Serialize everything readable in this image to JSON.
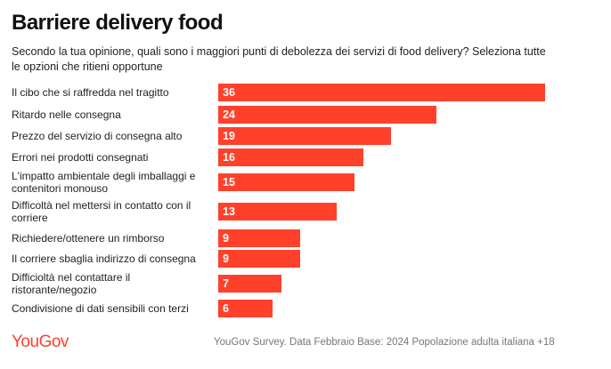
{
  "chart_data": {
    "type": "bar",
    "orientation": "horizontal",
    "title": "Barriere delivery food",
    "subtitle": "Secondo la tua opinione, quali sono i maggiori punti di debolezza dei servizi di food delivery? Seleziona tutte le opzioni che ritieni opportune",
    "categories": [
      "Il cibo che si raffredda nel tragitto",
      "Ritardo nelle consegna",
      "Prezzo del servizio di consegna alto",
      "Errori nei prodotti consegnati",
      "L'impatto ambientale degli imballaggi e contenitori monouso",
      "Difficoltà nel mettersi in contatto con il corriere",
      "Richiedere/ottenere un rimborso",
      "Il corriere sbaglia indirizzo di consegna",
      "Difficioltà nel contattare il ristorante/negozio",
      "Condivisione di dati sensibili con terzi"
    ],
    "values": [
      36,
      24,
      19,
      16,
      15,
      13,
      9,
      9,
      7,
      6
    ],
    "bar_color": "#ff412c",
    "grid": false
  },
  "footer": {
    "logo": "YouGov",
    "source": "YouGov Survey. Data Febbraio Base: 2024 Popolazione adulta italiana +18"
  }
}
